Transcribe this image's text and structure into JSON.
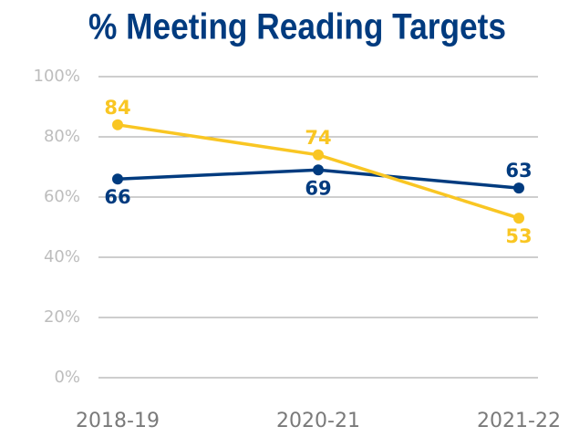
{
  "chart_data": {
    "type": "line",
    "title": "% Meeting Reading Targets",
    "categories": [
      "2018-19",
      "2020-21",
      "2021-22"
    ],
    "series": [
      {
        "color": "#003b7f",
        "values": [
          66,
          69,
          63
        ]
      },
      {
        "color": "#f9c623",
        "values": [
          84,
          74,
          53
        ]
      }
    ],
    "ylim": [
      0,
      100
    ],
    "yticks": [
      {
        "value": 0,
        "label": "0%"
      },
      {
        "value": 20,
        "label": "20%"
      },
      {
        "value": 40,
        "label": "40%"
      },
      {
        "value": 60,
        "label": "60%"
      },
      {
        "value": 80,
        "label": "80%"
      },
      {
        "value": 100,
        "label": "100%"
      }
    ],
    "grid": true
  }
}
